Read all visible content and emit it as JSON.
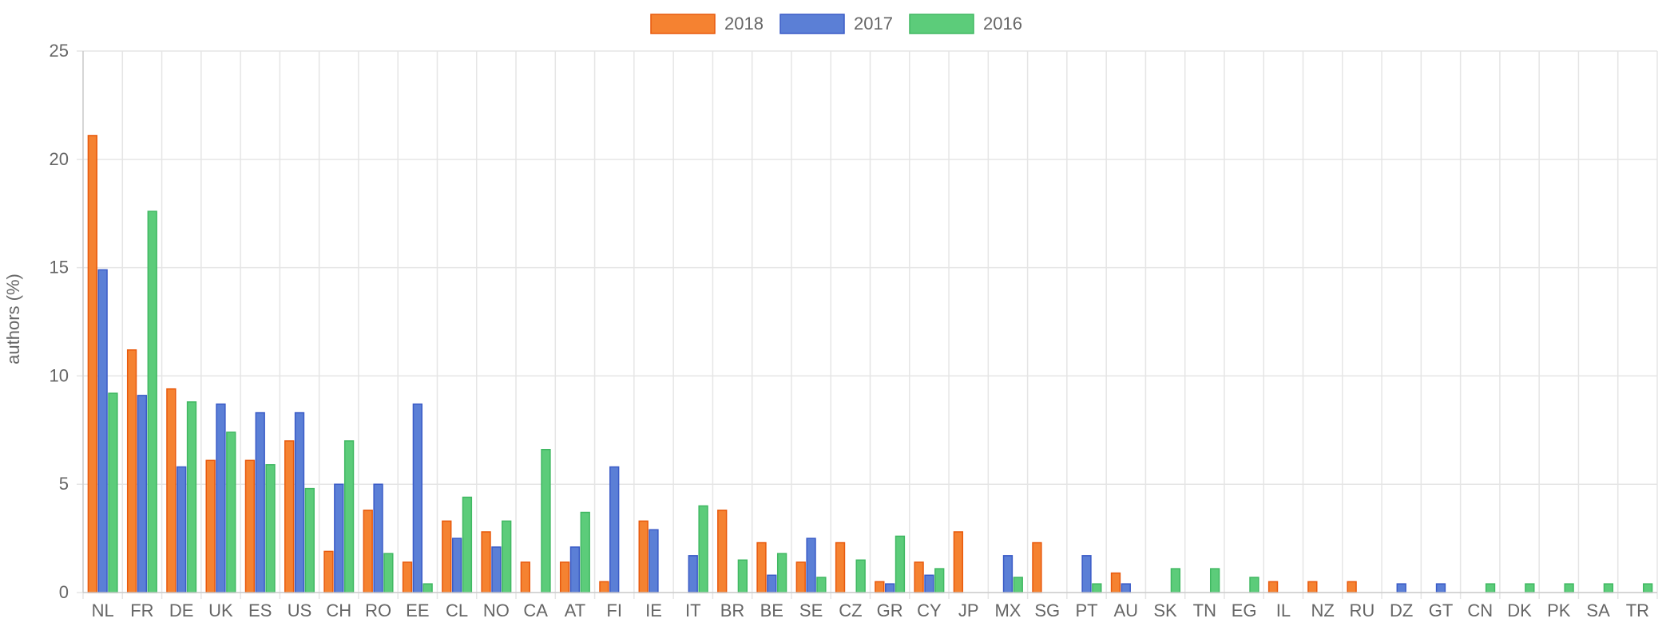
{
  "chart_data": {
    "type": "bar",
    "title": "",
    "xlabel": "",
    "ylabel": "authors (%)",
    "ylim": [
      0,
      25
    ],
    "yticks": [
      0,
      5,
      10,
      15,
      20,
      25
    ],
    "grid": true,
    "legend_position": "top-center",
    "categories": [
      "NL",
      "FR",
      "DE",
      "UK",
      "ES",
      "US",
      "CH",
      "RO",
      "EE",
      "CL",
      "NO",
      "CA",
      "AT",
      "FI",
      "IE",
      "IT",
      "BR",
      "BE",
      "SE",
      "CZ",
      "GR",
      "CY",
      "JP",
      "MX",
      "SG",
      "PT",
      "AU",
      "SK",
      "TN",
      "EG",
      "IL",
      "NZ",
      "RU",
      "DZ",
      "GT",
      "CN",
      "DK",
      "PK",
      "SA",
      "TR"
    ],
    "series": [
      {
        "name": "2018",
        "color": "#f58231",
        "border": "#e8590c",
        "values": [
          21.1,
          11.2,
          9.4,
          6.1,
          6.1,
          7.0,
          1.9,
          3.8,
          1.4,
          3.3,
          2.8,
          1.4,
          1.4,
          0.5,
          3.3,
          0,
          3.8,
          2.3,
          1.4,
          2.3,
          0.5,
          1.4,
          2.8,
          0,
          2.3,
          0,
          0.9,
          0,
          0,
          0,
          0.5,
          0.5,
          0.5,
          0,
          0,
          0,
          0,
          0,
          0,
          0
        ]
      },
      {
        "name": "2017",
        "color": "#5b7fd6",
        "border": "#3a5bc7",
        "values": [
          14.9,
          9.1,
          5.8,
          8.7,
          8.3,
          8.3,
          5.0,
          5.0,
          8.7,
          2.5,
          2.1,
          0,
          2.1,
          5.8,
          2.9,
          1.7,
          0,
          0.8,
          2.5,
          0,
          0.4,
          0.8,
          0,
          1.7,
          0,
          1.7,
          0.4,
          0,
          0,
          0,
          0,
          0,
          0,
          0.4,
          0.4,
          0,
          0,
          0,
          0,
          0
        ]
      },
      {
        "name": "2016",
        "color": "#5ccc7a",
        "border": "#40b862",
        "values": [
          9.2,
          17.6,
          8.8,
          7.4,
          5.9,
          4.8,
          7.0,
          1.8,
          0.4,
          4.4,
          3.3,
          6.6,
          3.7,
          0,
          0,
          4.0,
          1.5,
          1.8,
          0.7,
          1.5,
          2.6,
          1.1,
          0,
          0.7,
          0,
          0.4,
          0,
          1.1,
          1.1,
          0.7,
          0,
          0,
          0,
          0,
          0,
          0.4,
          0.4,
          0.4,
          0.4,
          0.4
        ]
      }
    ]
  },
  "style": {
    "grid_color": "#e5e5e5",
    "axis_color": "#cccccc",
    "text_color": "#666666"
  }
}
